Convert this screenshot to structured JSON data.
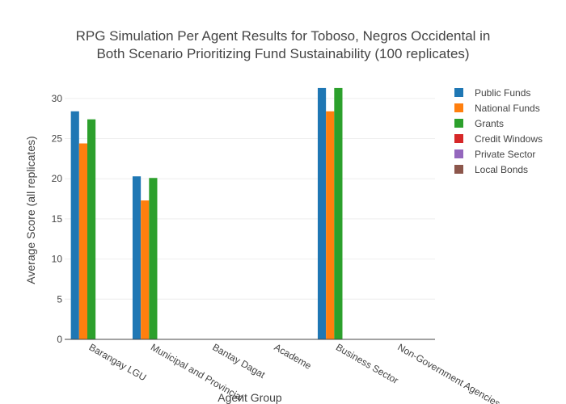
{
  "chart_data": {
    "type": "bar",
    "title_lines": [
      "RPG Simulation Per Agent Results for Toboso, Negros Occidental in",
      "Both Scenario Prioritizing Fund Sustainability (100 replicates)"
    ],
    "xlabel": "Agent Group",
    "ylabel": "Average Score (all replicates)",
    "ylim": [
      0,
      32.5
    ],
    "yticks": [
      0,
      5,
      10,
      15,
      20,
      25,
      30
    ],
    "grid": true,
    "legend_position": "right",
    "categories": [
      "Barangay LGU",
      "Municipal and Provincial",
      "Bantay Dagat",
      "Academe",
      "Business Sector",
      "Non-Government Agencies"
    ],
    "series": [
      {
        "name": "Public Funds",
        "color": "#1f77b4",
        "values": [
          28.4,
          20.3,
          0,
          0,
          31.3,
          0
        ]
      },
      {
        "name": "National Funds",
        "color": "#ff7f0e",
        "values": [
          24.4,
          17.3,
          0,
          0,
          28.4,
          0
        ]
      },
      {
        "name": "Grants",
        "color": "#2ca02c",
        "values": [
          27.4,
          20.1,
          0,
          0,
          31.3,
          0
        ]
      },
      {
        "name": "Credit Windows",
        "color": "#d62728",
        "values": [
          0,
          0,
          0,
          0,
          0,
          0
        ]
      },
      {
        "name": "Private Sector",
        "color": "#9467bd",
        "values": [
          0,
          0,
          0,
          0,
          0,
          0
        ]
      },
      {
        "name": "Local Bonds",
        "color": "#8c564b",
        "values": [
          0,
          0,
          0,
          0,
          0,
          0
        ]
      }
    ]
  }
}
